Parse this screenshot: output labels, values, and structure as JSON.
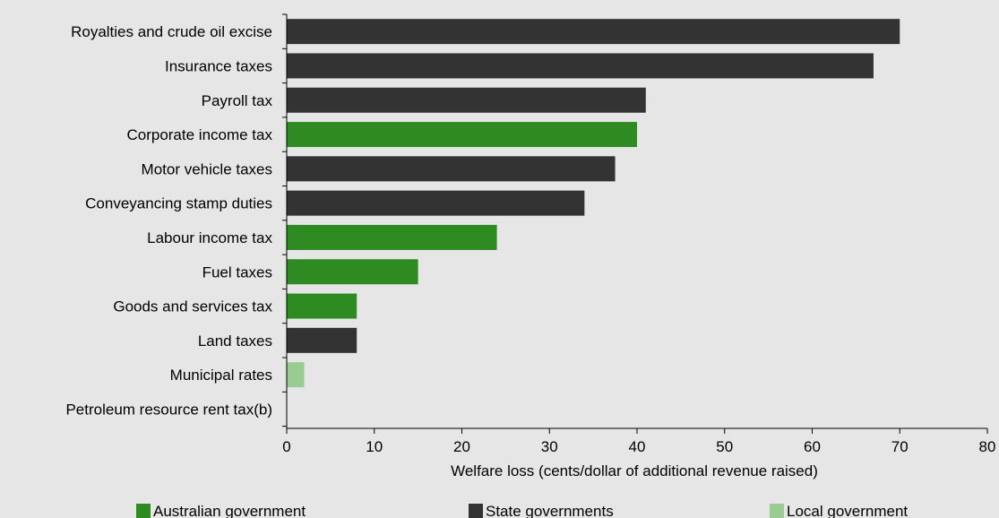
{
  "chart_data": {
    "type": "bar",
    "orientation": "horizontal",
    "categories": [
      "Royalties and crude oil excise",
      "Insurance taxes",
      "Payroll tax",
      "Corporate income tax",
      "Motor vehicle taxes",
      "Conveyancing stamp duties",
      "Labour income tax",
      "Fuel taxes",
      "Goods and services tax",
      "Land taxes",
      "Municipal rates",
      "Petroleum resource rent tax(b)"
    ],
    "values": [
      70,
      67,
      41,
      40,
      37.5,
      34,
      24,
      15,
      8,
      8,
      2,
      0
    ],
    "groups": [
      "State governments",
      "State governments",
      "State governments",
      "Australian government",
      "State governments",
      "State governments",
      "Australian government",
      "Australian government",
      "Australian government",
      "State governments",
      "Local government",
      "Australian government"
    ],
    "legend": [
      {
        "name": "Australian government",
        "color": "#2e8b22"
      },
      {
        "name": "State governments",
        "color": "#333333"
      },
      {
        "name": "Local government",
        "color": "#98cc90"
      }
    ],
    "legend_position": "bottom",
    "xlabel": "Welfare loss (cents/dollar of additional revenue raised)",
    "xlim": [
      0,
      80
    ],
    "xticks": [
      0,
      10,
      20,
      30,
      40,
      50,
      60,
      70,
      80
    ],
    "grid": false
  }
}
